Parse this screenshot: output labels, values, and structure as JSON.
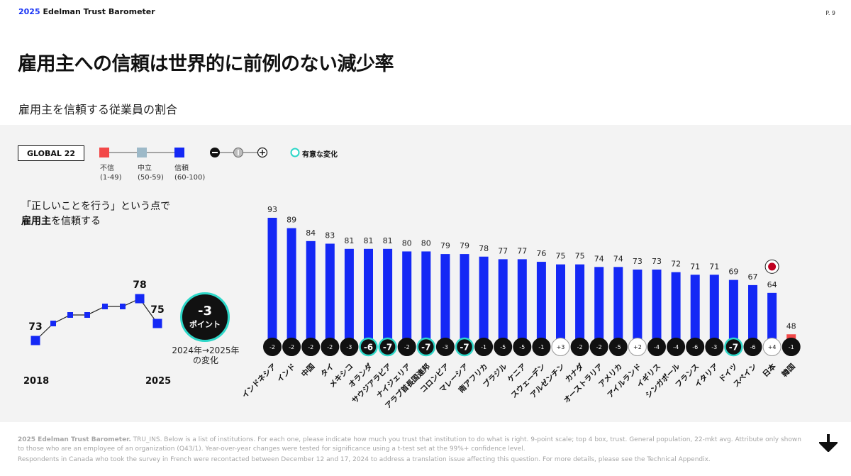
{
  "header": {
    "brand_year": "2025",
    "brand_name": "Edelman Trust Barometer",
    "page": "P. 9"
  },
  "title": "雇用主への信頼は世界的に前例のない減少率",
  "subtitle": "雇用主を信頼する従業員の割合",
  "legend": {
    "global": "GLOBAL 22",
    "items": [
      {
        "label": "不信",
        "range": "(1-49)",
        "color": "#f24848"
      },
      {
        "label": "中立",
        "range": "(50-59)",
        "color": "#9db9c8"
      },
      {
        "label": "信頼",
        "range": "(60-100)",
        "color": "#1428f5"
      }
    ],
    "significant": "有意な変化"
  },
  "question": {
    "line1": "「正しいことを行う」という点で",
    "line2_bold": "雇用主",
    "line2_rest": "を信頼する"
  },
  "trend": {
    "start_label": "2018",
    "end_label": "2025",
    "values": [
      73,
      null,
      null,
      null,
      null,
      null,
      78,
      75
    ],
    "label_first": "73",
    "label_peak": "78",
    "label_last": "75"
  },
  "change": {
    "value": "-3",
    "unit": "ポイント",
    "caption1": "2024年→2025年",
    "caption2": "の変化"
  },
  "chart_data": {
    "type": "bar",
    "ylim": [
      0,
      100
    ],
    "categories": [
      "インドネシア",
      "インド",
      "中国",
      "タイ",
      "メキシコ",
      "オランダ",
      "サウジアラビア",
      "ナイジェリア",
      "アラブ首長国連邦",
      "コロンビア",
      "マレーシア",
      "南アフリカ",
      "ブラジル",
      "ケニア",
      "スウェーデン",
      "アルゼンチン",
      "カナダ",
      "オーストラリア",
      "アメリカ",
      "アイルランド",
      "イギリス",
      "シンガポール",
      "フランス",
      "イタリア",
      "ドイツ",
      "スペイン",
      "日本",
      "韓国"
    ],
    "values": [
      93,
      89,
      84,
      83,
      81,
      81,
      81,
      80,
      80,
      79,
      79,
      78,
      77,
      77,
      76,
      75,
      75,
      74,
      74,
      73,
      73,
      72,
      71,
      71,
      69,
      67,
      64,
      48
    ],
    "changes": [
      "-2",
      "-2",
      "-2",
      "-2",
      "-3",
      "-6",
      "-7",
      "-2",
      "-7",
      "-3",
      "-7",
      "-1",
      "-5",
      "-5",
      "-1",
      "+3",
      "-2",
      "-2",
      "-5",
      "+2",
      "-4",
      "-4",
      "-6",
      "-3",
      "-7",
      "-6",
      "+4",
      "-1"
    ],
    "significant": [
      false,
      false,
      false,
      false,
      false,
      true,
      true,
      false,
      true,
      false,
      true,
      false,
      false,
      false,
      false,
      false,
      false,
      false,
      false,
      false,
      false,
      false,
      false,
      false,
      true,
      false,
      false,
      false
    ],
    "colors": {
      "trust": "#1428f5",
      "distrust": "#f24848",
      "neutral": "#9db9c8",
      "significant": "#2dd7c8"
    },
    "highlight": "日本"
  },
  "footer": {
    "source_bold": "2025 Edelman Trust Barometer.",
    "source_text": " TRU_INS. Below is a list of institutions. For each one, please indicate how much you trust that institution to do what is right. 9-point scale; top 4 box, trust. General population, 22-mkt avg. Attribute only shown to those who are an employee of an organization (Q43/1). Year-over-year changes were tested for significance using a t-test set at the 99%+ confidence level.",
    "note": "Respondents in Canada who took the survey in French were recontacted between December 12 and 17, 2024 to address a translation issue affecting this question. For more details, please see the Technical Appendix."
  }
}
